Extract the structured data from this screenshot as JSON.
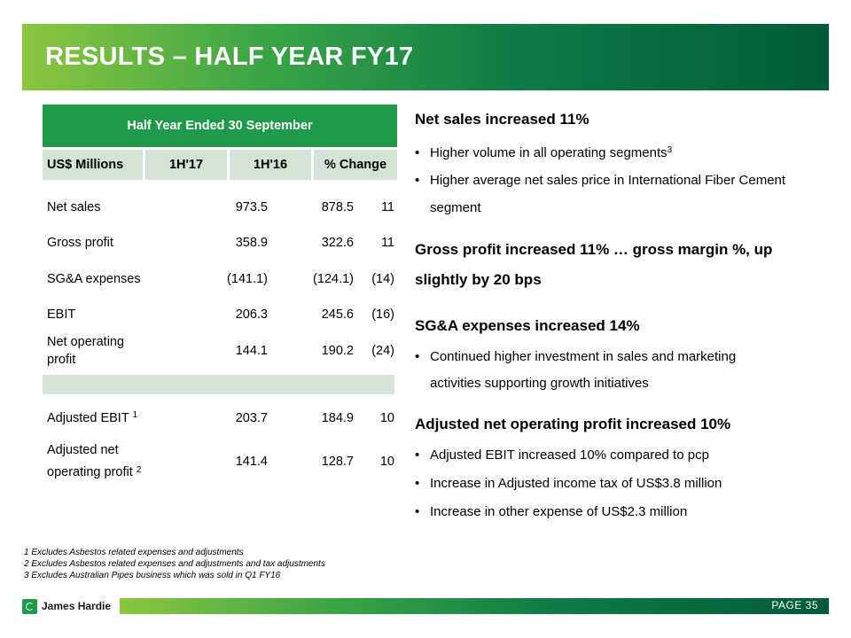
{
  "header": {
    "title": "RESULTS – HALF YEAR FY17"
  },
  "table": {
    "caption": "Half Year Ended 30 September",
    "columns": [
      "US$ Millions",
      "1H'17",
      "1H'16",
      "% Change"
    ],
    "rows": [
      {
        "label": "Net sales",
        "v1": "973.5",
        "v2": "878.5",
        "v3": "11"
      },
      {
        "label": "Gross profit",
        "v1": "358.9",
        "v2": "322.6",
        "v3": "11"
      },
      {
        "label": "SG&A expenses",
        "v1": "(141.1)",
        "v2": "(124.1)",
        "v3": "(14)"
      },
      {
        "label": "EBIT",
        "v1": "206.3",
        "v2": "245.6",
        "v3": "(16)"
      },
      {
        "label": "Net operating profit",
        "v1": "144.1",
        "v2": "190.2",
        "v3": "(24)"
      },
      {
        "label": "Adjusted EBIT",
        "sup": "1",
        "v1": "203.7",
        "v2": "184.9",
        "v3": "10"
      },
      {
        "label": "Adjusted net operating profit",
        "sup": "2",
        "v1": "141.4",
        "v2": "128.7",
        "v3": "10"
      }
    ]
  },
  "commentary": {
    "net_sales": {
      "heading": "Net sales increased 11%",
      "b1": "Higher volume in all operating segments",
      "b1_sup": "3",
      "b2_line1": "Higher average net sales price in International Fiber Cement",
      "b2_line2": "segment"
    },
    "gross_profit": {
      "line1": "Gross profit increased 11% … gross margin %, up",
      "line2": "slightly by 20 bps"
    },
    "sga": {
      "heading": "SG&A expenses increased 14%",
      "b1_line1": "Continued higher investment in sales and marketing",
      "b1_line2": "activities supporting growth initiatives"
    },
    "adj_nop": {
      "heading": "Adjusted net operating profit increased 10%",
      "b1": "Adjusted EBIT increased 10% compared to pcp",
      "b2": "Increase in Adjusted income tax of US$3.8 million",
      "b3": "Increase in other expense of US$2.3 million"
    },
    "bullet": "•"
  },
  "footnotes": [
    "1  Excludes Asbestos related expenses and adjustments",
    "2  Excludes Asbestos related expenses and adjustments and tax adjustments",
    "3  Excludes Australian Pipes business which was sold in Q1 FY16"
  ],
  "footer": {
    "logo_text": "James Hardie",
    "page_label": "PAGE  35"
  },
  "colors": {
    "brand_dark": "#005c36",
    "brand_light": "#8cc63f",
    "table_header": "#1f9a4b",
    "table_band": "#d3e3d5"
  }
}
